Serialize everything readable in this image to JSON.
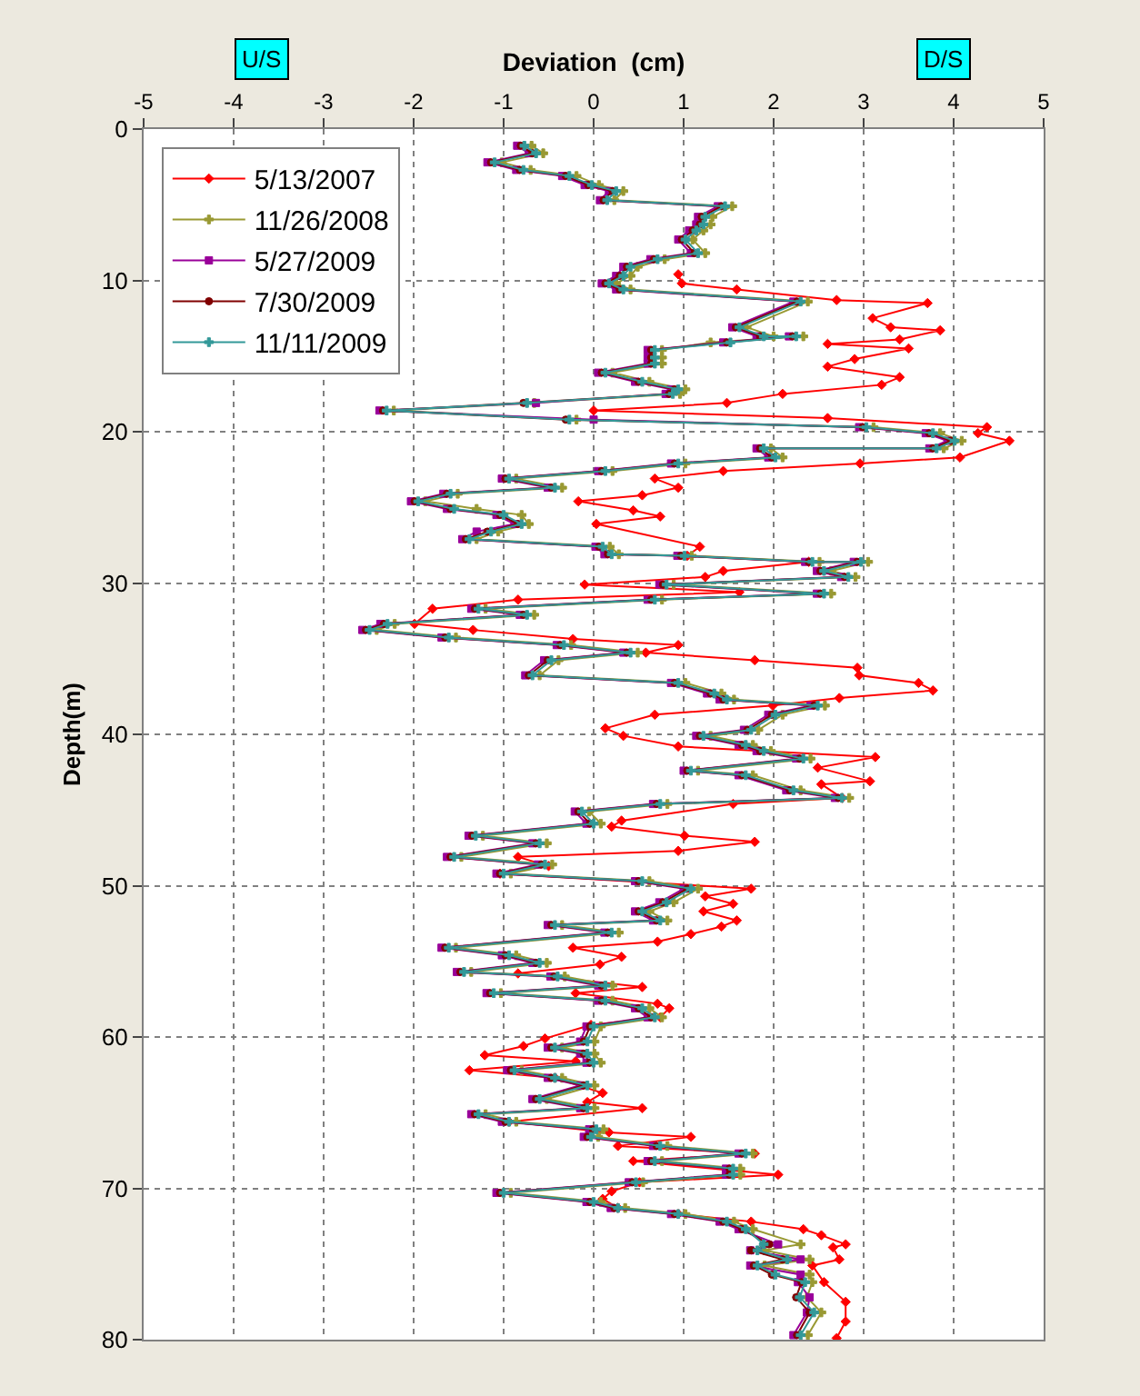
{
  "chart_data": {
    "type": "line",
    "xlabel": "Deviation  (cm)",
    "ylabel": "Depth(m)",
    "xlim": [
      -5,
      5
    ],
    "xticks": [
      -5,
      -4,
      -3,
      -2,
      -1,
      0,
      1,
      2,
      3,
      4,
      5
    ],
    "ylim": [
      80,
      0
    ],
    "yticks": [
      0,
      10,
      20,
      30,
      40,
      50,
      60,
      70,
      80
    ],
    "grid": true,
    "legend": "top left",
    "line_style": "solid",
    "annotations": [
      "U/S",
      "D/S"
    ],
    "series": [
      {
        "name": "5/13/2007",
        "color": "#ff0000",
        "marker": "diamond",
        "x": [
          0.94,
          0.98,
          1.59,
          2.7,
          3.71,
          3.1,
          3.3,
          3.85,
          3.4,
          2.6,
          3.5,
          2.9,
          2.6,
          3.4,
          3.2,
          2.1,
          1.48,
          0.0,
          2.6,
          4.37,
          4.27,
          4.62,
          4.07,
          2.96,
          1.44,
          0.68,
          0.94,
          0.54,
          -0.17,
          0.44,
          0.74,
          0.03,
          1.18,
          1.04,
          2.39,
          1.44,
          1.24,
          -0.1,
          1.62,
          -0.84,
          -1.79,
          -1.99,
          -1.34,
          -0.23,
          0.94,
          0.58,
          1.79,
          2.93,
          2.95,
          3.61,
          3.77,
          2.73,
          1.99,
          0.68,
          0.13,
          0.33,
          0.94,
          3.13,
          2.49,
          3.07,
          2.53,
          2.76,
          1.55,
          0.31,
          0.2,
          1.01,
          1.79,
          0.94,
          -0.84,
          -0.5,
          -1.04,
          1.75,
          1.24,
          1.55,
          1.22,
          1.59,
          1.42,
          1.08,
          0.71,
          -0.23,
          0.31,
          0.07,
          -0.84,
          0.54,
          -0.2,
          0.71,
          0.84,
          0.74,
          -0.03,
          -0.54,
          -0.78,
          -1.21,
          -0.2,
          -1.38,
          -0.43,
          0.1,
          -0.07,
          0.54,
          -0.94,
          0.17,
          1.08,
          0.27,
          1.79,
          0.44,
          2.05,
          0.51,
          0.2,
          0.1,
          0.27,
          0.94,
          1.75,
          2.33,
          2.53,
          2.8,
          2.66,
          2.73,
          2.43,
          2.56,
          2.8,
          2.8,
          2.7
        ],
        "values": [
          9.6,
          10.2,
          10.6,
          11.3,
          11.5,
          12.5,
          13.1,
          13.3,
          13.9,
          14.2,
          14.5,
          15.2,
          15.7,
          16.4,
          16.9,
          17.5,
          18.1,
          18.6,
          19.1,
          19.7,
          20.1,
          20.6,
          21.7,
          22.1,
          22.6,
          23.1,
          23.7,
          24.2,
          24.6,
          25.2,
          25.6,
          26.1,
          27.6,
          28.2,
          28.6,
          29.2,
          29.6,
          30.1,
          30.6,
          31.1,
          31.7,
          32.7,
          33.1,
          33.7,
          34.1,
          34.6,
          35.1,
          35.6,
          36.1,
          36.6,
          37.1,
          37.6,
          38.1,
          38.7,
          39.6,
          40.1,
          40.8,
          41.5,
          42.2,
          43.1,
          43.3,
          44.2,
          44.6,
          45.7,
          46.1,
          46.7,
          47.1,
          47.7,
          48.1,
          48.7,
          49.2,
          50.2,
          50.7,
          51.2,
          51.7,
          52.3,
          52.7,
          53.2,
          53.7,
          54.1,
          54.7,
          55.2,
          55.8,
          56.7,
          57.1,
          57.8,
          58.1,
          58.7,
          59.2,
          60.1,
          60.6,
          61.2,
          61.6,
          62.2,
          62.7,
          63.7,
          64.3,
          64.7,
          65.6,
          66.3,
          66.6,
          67.2,
          67.7,
          68.2,
          69.1,
          69.6,
          70.2,
          70.7,
          71.3,
          71.7,
          72.2,
          72.7,
          73.1,
          73.7,
          73.9,
          74.7,
          75.1,
          76.2,
          77.5,
          78.8,
          79.9
        ]
      },
      {
        "name": "11/26/2008",
        "color": "#999933",
        "marker": "cross",
        "x": [
          -0.69,
          -0.56,
          -1.02,
          -0.7,
          -0.19,
          0.06,
          0.33,
          0.23,
          1.54,
          1.32,
          1.3,
          1.22,
          1.1,
          1.24,
          0.79,
          0.49,
          0.41,
          0.25,
          0.41,
          2.38,
          1.7,
          2.0,
          2.33,
          1.3,
          0.76,
          0.76,
          0.76,
          0.21,
          0.62,
          1.02,
          0.96,
          -0.66,
          -2.22,
          -0.19,
          3.11,
          3.85,
          4.09,
          3.89,
          1.97,
          2.1,
          1.02,
          0.21,
          -0.86,
          -0.35,
          -1.51,
          -1.87,
          -1.3,
          -0.8,
          -0.72,
          -1.06,
          -1.3,
          0.18,
          0.28,
          1.09,
          2.51,
          3.05,
          2.64,
          2.91,
          0.89,
          2.64,
          0.76,
          -1.2,
          -0.66,
          -2.21,
          -2.41,
          -1.53,
          -0.25,
          0.49,
          -0.39,
          -0.6,
          1.02,
          1.42,
          1.56,
          2.57,
          2.1,
          1.83,
          1.3,
          1.77,
          1.97,
          2.41,
          1.16,
          1.77,
          2.3,
          2.84,
          0.82,
          -0.05,
          0.08,
          -1.23,
          -0.52,
          -1.47,
          -0.46,
          -0.92,
          0.62,
          1.16,
          0.89,
          0.62,
          0.82,
          -0.35,
          0.28,
          -1.53,
          -0.86,
          -0.52,
          -1.36,
          -0.32,
          0.21,
          -1.03,
          0.21,
          0.62,
          0.76,
          0.08,
          0.01,
          -0.35,
          0.01,
          0.08,
          -0.8,
          -0.35,
          0.01,
          -0.52,
          0.01,
          -1.2,
          -0.86,
          0.11,
          0.05,
          0.82,
          1.77,
          0.76,
          1.63,
          1.63,
          0.55,
          -0.92,
          0.08,
          0.35,
          1.02,
          1.56,
          1.77,
          2.3,
          1.9,
          2.4,
          1.9,
          2.4,
          2.43,
          2.37,
          2.53,
          2.38
        ],
        "values": [
          1.1,
          1.6,
          2.2,
          2.7,
          3.1,
          3.7,
          4.1,
          4.7,
          5.1,
          5.8,
          6.3,
          6.7,
          7.3,
          8.2,
          8.6,
          9.1,
          9.7,
          10.2,
          10.6,
          11.4,
          13.1,
          13.7,
          13.7,
          14.1,
          14.6,
          15.1,
          15.5,
          16.1,
          16.7,
          17.2,
          17.5,
          18.1,
          18.6,
          19.2,
          19.7,
          20.1,
          20.6,
          21.1,
          21.1,
          21.7,
          22.1,
          22.6,
          23.1,
          23.7,
          24.1,
          24.6,
          25.1,
          25.5,
          26.1,
          26.6,
          27.1,
          27.6,
          28.1,
          28.2,
          28.6,
          28.6,
          29.2,
          29.6,
          30.1,
          30.7,
          31.1,
          31.7,
          32.1,
          32.7,
          33.1,
          33.6,
          34.1,
          34.6,
          35.1,
          36.1,
          36.6,
          37.3,
          37.7,
          38.1,
          38.7,
          39.7,
          40.1,
          40.7,
          41.1,
          41.6,
          42.4,
          42.7,
          43.7,
          44.2,
          44.6,
          45.1,
          45.9,
          46.7,
          47.2,
          48.1,
          48.6,
          49.2,
          49.7,
          50.2,
          51.1,
          51.7,
          52.3,
          52.6,
          53.1,
          54.1,
          54.6,
          55.1,
          55.7,
          56.0,
          56.6,
          57.1,
          57.6,
          58.1,
          58.7,
          59.3,
          60.3,
          60.7,
          61.1,
          61.7,
          62.2,
          62.7,
          63.2,
          64.1,
          64.7,
          65.1,
          65.6,
          66.1,
          66.6,
          67.2,
          67.7,
          68.2,
          68.7,
          69.1,
          69.6,
          70.3,
          70.9,
          71.3,
          71.7,
          72.2,
          72.7,
          73.7,
          74.1,
          74.7,
          75.1,
          75.7,
          76.2,
          77.2,
          78.2,
          79.7
        ]
      },
      {
        "name": "5/27/2009",
        "color": "#990099",
        "marker": "square",
        "x": [
          -0.85,
          -0.72,
          -1.18,
          -0.86,
          -0.35,
          -0.1,
          0.17,
          0.07,
          1.38,
          1.16,
          1.14,
          1.06,
          0.94,
          1.08,
          0.63,
          0.33,
          0.25,
          0.09,
          0.25,
          2.22,
          1.54,
          1.81,
          2.17,
          1.44,
          0.6,
          0.6,
          0.6,
          0.05,
          0.46,
          0.86,
          0.8,
          -0.64,
          -2.38,
          0.0,
          2.95,
          3.69,
          3.93,
          3.73,
          1.81,
          1.94,
          0.86,
          0.05,
          -1.02,
          -0.51,
          -1.67,
          -2.03,
          -1.63,
          -1.08,
          -0.88,
          -1.3,
          -1.46,
          0.02,
          0.12,
          0.93,
          2.35,
          2.89,
          2.48,
          2.75,
          0.73,
          2.48,
          0.6,
          -1.36,
          -0.82,
          -2.37,
          -2.57,
          -1.69,
          -0.41,
          0.33,
          -0.55,
          -0.76,
          0.86,
          1.26,
          1.4,
          2.41,
          1.94,
          1.67,
          1.14,
          1.61,
          1.81,
          2.25,
          1.0,
          1.61,
          2.14,
          2.68,
          0.66,
          -0.21,
          -0.08,
          -1.39,
          -0.68,
          -1.63,
          -0.62,
          -1.08,
          0.46,
          1.0,
          0.73,
          0.46,
          0.66,
          -0.51,
          0.12,
          -1.69,
          -1.02,
          -0.68,
          -1.52,
          -0.48,
          0.05,
          -1.19,
          0.05,
          0.46,
          0.6,
          -0.08,
          -0.15,
          -0.51,
          -0.15,
          -0.08,
          -0.96,
          -0.51,
          -0.15,
          -0.68,
          -0.15,
          -1.36,
          -1.02,
          -0.05,
          -0.11,
          0.66,
          1.61,
          0.6,
          1.47,
          1.47,
          0.39,
          -1.08,
          -0.08,
          0.19,
          0.86,
          1.4,
          1.61,
          2.05,
          1.74,
          2.3,
          1.74,
          2.3,
          2.27,
          2.4,
          2.37,
          2.22
        ],
        "values": [
          1.1,
          1.6,
          2.2,
          2.7,
          3.1,
          3.7,
          4.1,
          4.7,
          5.1,
          5.8,
          6.3,
          6.7,
          7.3,
          8.2,
          8.6,
          9.1,
          9.7,
          10.2,
          10.6,
          11.4,
          13.1,
          13.7,
          13.7,
          14.1,
          14.6,
          15.1,
          15.5,
          16.1,
          16.7,
          17.2,
          17.5,
          18.1,
          18.6,
          19.2,
          19.7,
          20.1,
          20.6,
          21.1,
          21.1,
          21.7,
          22.1,
          22.6,
          23.1,
          23.7,
          24.1,
          24.6,
          25.1,
          25.5,
          26.1,
          26.6,
          27.1,
          27.6,
          28.1,
          28.2,
          28.6,
          28.6,
          29.2,
          29.6,
          30.1,
          30.7,
          31.1,
          31.7,
          32.1,
          32.7,
          33.1,
          33.6,
          34.1,
          34.6,
          35.1,
          36.1,
          36.6,
          37.3,
          37.7,
          38.1,
          38.7,
          39.7,
          40.1,
          40.7,
          41.1,
          41.6,
          42.4,
          42.7,
          43.7,
          44.2,
          44.6,
          45.1,
          45.9,
          46.7,
          47.2,
          48.1,
          48.6,
          49.2,
          49.7,
          50.2,
          51.1,
          51.7,
          52.3,
          52.6,
          53.1,
          54.1,
          54.6,
          55.1,
          55.7,
          56.0,
          56.6,
          57.1,
          57.6,
          58.1,
          58.7,
          59.3,
          60.3,
          60.7,
          61.1,
          61.7,
          62.2,
          62.7,
          63.2,
          64.1,
          64.7,
          65.1,
          65.6,
          66.1,
          66.6,
          67.2,
          67.7,
          68.2,
          68.7,
          69.1,
          69.6,
          70.3,
          70.9,
          71.3,
          71.7,
          72.2,
          72.7,
          73.7,
          74.1,
          74.7,
          75.1,
          75.7,
          76.2,
          77.2,
          78.2,
          79.7
        ]
      },
      {
        "name": "7/30/2009",
        "color": "#800000",
        "marker": "circle",
        "x": [
          -0.81,
          -0.68,
          -1.14,
          -0.82,
          -0.31,
          -0.06,
          0.21,
          0.11,
          1.42,
          1.2,
          1.18,
          1.1,
          0.98,
          1.12,
          0.67,
          0.37,
          0.29,
          0.13,
          0.29,
          2.26,
          1.58,
          1.85,
          2.21,
          1.48,
          0.64,
          0.64,
          0.64,
          0.09,
          0.5,
          0.9,
          0.84,
          -0.78,
          -2.34,
          -0.31,
          2.99,
          3.73,
          3.97,
          3.77,
          1.85,
          1.98,
          0.9,
          0.09,
          -0.98,
          -0.47,
          -1.63,
          -1.99,
          -1.59,
          -1.04,
          -0.84,
          -1.18,
          -1.42,
          0.06,
          0.16,
          0.97,
          2.39,
          2.93,
          2.52,
          2.79,
          0.77,
          2.52,
          0.64,
          -1.32,
          -0.78,
          -2.33,
          -2.53,
          -1.65,
          -0.37,
          0.37,
          -0.51,
          -0.72,
          0.9,
          1.3,
          1.44,
          2.45,
          1.98,
          1.71,
          1.18,
          1.65,
          1.85,
          2.29,
          1.04,
          1.65,
          2.18,
          2.72,
          0.7,
          -0.17,
          -0.04,
          -1.35,
          -0.64,
          -1.59,
          -0.58,
          -1.04,
          0.5,
          1.04,
          0.77,
          0.5,
          0.7,
          -0.47,
          0.16,
          -1.65,
          -0.98,
          -0.64,
          -1.48,
          -0.44,
          0.09,
          -1.15,
          0.09,
          0.5,
          0.64,
          -0.04,
          -0.11,
          -0.47,
          -0.11,
          -0.04,
          -0.92,
          -0.47,
          -0.11,
          -0.64,
          -0.11,
          -1.32,
          -0.98,
          -0.01,
          -0.07,
          0.7,
          1.65,
          0.64,
          1.51,
          1.51,
          0.43,
          -1.04,
          -0.04,
          0.23,
          0.9,
          1.44,
          1.65,
          1.95,
          1.75,
          2.1,
          1.78,
          1.98,
          2.31,
          2.25,
          2.4,
          2.26
        ],
        "values": [
          1.1,
          1.6,
          2.2,
          2.7,
          3.1,
          3.7,
          4.1,
          4.7,
          5.1,
          5.8,
          6.3,
          6.7,
          7.3,
          8.2,
          8.6,
          9.1,
          9.7,
          10.2,
          10.6,
          11.4,
          13.1,
          13.7,
          13.7,
          14.1,
          14.6,
          15.1,
          15.5,
          16.1,
          16.7,
          17.2,
          17.5,
          18.1,
          18.6,
          19.2,
          19.7,
          20.1,
          20.6,
          21.1,
          21.1,
          21.7,
          22.1,
          22.6,
          23.1,
          23.7,
          24.1,
          24.6,
          25.1,
          25.5,
          26.1,
          26.6,
          27.1,
          27.6,
          28.1,
          28.2,
          28.6,
          28.6,
          29.2,
          29.6,
          30.1,
          30.7,
          31.1,
          31.7,
          32.1,
          32.7,
          33.1,
          33.6,
          34.1,
          34.6,
          35.1,
          36.1,
          36.6,
          37.3,
          37.7,
          38.1,
          38.7,
          39.7,
          40.1,
          40.7,
          41.1,
          41.6,
          42.4,
          42.7,
          43.7,
          44.2,
          44.6,
          45.1,
          45.9,
          46.7,
          47.2,
          48.1,
          48.6,
          49.2,
          49.7,
          50.2,
          51.1,
          51.7,
          52.3,
          52.6,
          53.1,
          54.1,
          54.6,
          55.1,
          55.7,
          56.0,
          56.6,
          57.1,
          57.6,
          58.1,
          58.7,
          59.3,
          60.3,
          60.7,
          61.1,
          61.7,
          62.2,
          62.7,
          63.2,
          64.1,
          64.7,
          65.1,
          65.6,
          66.1,
          66.6,
          67.2,
          67.7,
          68.2,
          68.7,
          69.1,
          69.6,
          70.3,
          70.9,
          71.3,
          71.7,
          72.2,
          72.7,
          73.7,
          74.1,
          74.7,
          75.1,
          75.7,
          76.2,
          77.2,
          78.2,
          79.7
        ]
      },
      {
        "name": "11/11/2009",
        "color": "#339999",
        "marker": "cross",
        "x": [
          -0.77,
          -0.64,
          -1.1,
          -0.78,
          -0.27,
          -0.02,
          0.25,
          0.15,
          1.46,
          1.24,
          1.22,
          1.14,
          1.02,
          1.16,
          0.71,
          0.41,
          0.33,
          0.17,
          0.33,
          2.3,
          1.62,
          1.89,
          2.25,
          1.52,
          0.68,
          0.68,
          0.68,
          0.13,
          0.54,
          0.94,
          0.88,
          -0.74,
          -2.3,
          -0.27,
          3.03,
          3.77,
          4.01,
          3.81,
          1.89,
          2.02,
          0.94,
          0.13,
          -0.94,
          -0.43,
          -1.59,
          -1.95,
          -1.55,
          -1.0,
          -0.8,
          -1.14,
          -1.38,
          0.1,
          0.2,
          1.01,
          2.43,
          2.97,
          2.56,
          2.83,
          0.81,
          2.56,
          0.68,
          -1.28,
          -0.74,
          -2.29,
          -2.49,
          -1.61,
          -0.33,
          0.41,
          -0.47,
          -0.68,
          0.94,
          1.34,
          1.48,
          2.49,
          2.02,
          1.75,
          1.22,
          1.69,
          1.89,
          2.33,
          1.08,
          1.69,
          2.22,
          2.76,
          0.74,
          -0.13,
          0.0,
          -1.31,
          -0.6,
          -1.55,
          -0.54,
          -1.0,
          0.54,
          1.08,
          0.81,
          0.54,
          0.74,
          -0.43,
          0.2,
          -1.61,
          -0.94,
          -0.6,
          -1.44,
          -0.4,
          0.13,
          -1.11,
          0.13,
          0.54,
          0.68,
          0.0,
          -0.07,
          -0.43,
          -0.07,
          0.0,
          -0.88,
          -0.43,
          -0.07,
          -0.6,
          -0.07,
          -1.28,
          -0.94,
          0.03,
          -0.03,
          0.74,
          1.69,
          0.68,
          1.55,
          1.55,
          0.47,
          -1.0,
          0.0,
          0.27,
          0.94,
          1.48,
          1.69,
          1.89,
          1.82,
          2.15,
          1.82,
          2.02,
          2.35,
          2.29,
          2.45,
          2.3
        ],
        "values": [
          1.1,
          1.6,
          2.2,
          2.7,
          3.1,
          3.7,
          4.1,
          4.7,
          5.1,
          5.8,
          6.3,
          6.7,
          7.3,
          8.2,
          8.6,
          9.1,
          9.7,
          10.2,
          10.6,
          11.4,
          13.1,
          13.7,
          13.7,
          14.1,
          14.6,
          15.1,
          15.5,
          16.1,
          16.7,
          17.2,
          17.5,
          18.1,
          18.6,
          19.2,
          19.7,
          20.1,
          20.6,
          21.1,
          21.1,
          21.7,
          22.1,
          22.6,
          23.1,
          23.7,
          24.1,
          24.6,
          25.1,
          25.5,
          26.1,
          26.6,
          27.1,
          27.6,
          28.1,
          28.2,
          28.6,
          28.6,
          29.2,
          29.6,
          30.1,
          30.7,
          31.1,
          31.7,
          32.1,
          32.7,
          33.1,
          33.6,
          34.1,
          34.6,
          35.1,
          36.1,
          36.6,
          37.3,
          37.7,
          38.1,
          38.7,
          39.7,
          40.1,
          40.7,
          41.1,
          41.6,
          42.4,
          42.7,
          43.7,
          44.2,
          44.6,
          45.1,
          45.9,
          46.7,
          47.2,
          48.1,
          48.6,
          49.2,
          49.7,
          50.2,
          51.1,
          51.7,
          52.3,
          52.6,
          53.1,
          54.1,
          54.6,
          55.1,
          55.7,
          56.0,
          56.6,
          57.1,
          57.6,
          58.1,
          58.7,
          59.3,
          60.3,
          60.7,
          61.1,
          61.7,
          62.2,
          62.7,
          63.2,
          64.1,
          64.7,
          65.1,
          65.6,
          66.1,
          66.6,
          67.2,
          67.7,
          68.2,
          68.7,
          69.1,
          69.6,
          70.3,
          70.9,
          71.3,
          71.7,
          72.2,
          72.7,
          73.7,
          74.1,
          74.7,
          75.1,
          75.7,
          76.2,
          77.2,
          78.2,
          79.7
        ]
      }
    ]
  }
}
